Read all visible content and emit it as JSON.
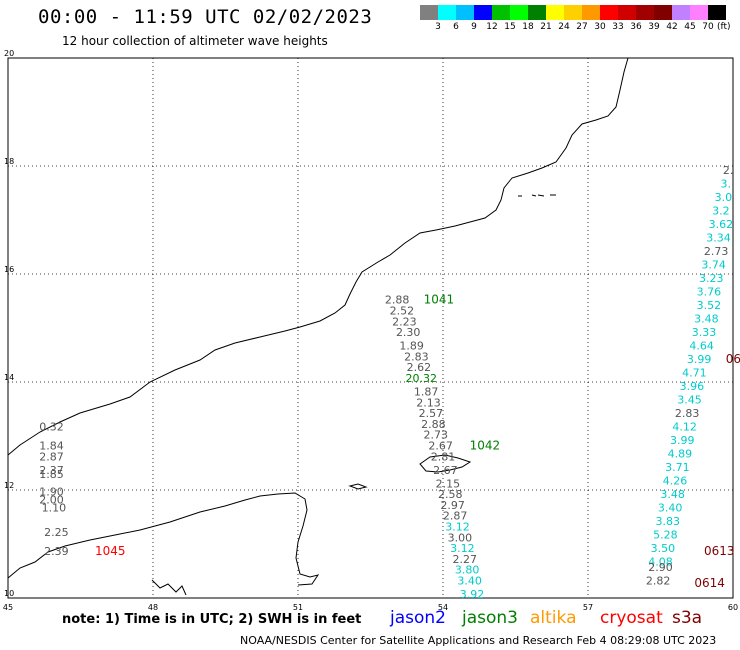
{
  "title": "00:00 - 11:59 UTC 02/02/2023",
  "subtitle": "12 hour collection of altimeter wave heights",
  "colorbar": {
    "unit": "(ft)",
    "colors": [
      "#808080",
      "#00ffff",
      "#00bfff",
      "#0000ff",
      "#00c000",
      "#00ff00",
      "#008000",
      "#ffff00",
      "#ffd000",
      "#ff9900",
      "#ff0000",
      "#d00000",
      "#a00000",
      "#800000",
      "#c080ff",
      "#ff80ff",
      "#000000"
    ],
    "ticks": [
      "3",
      "6",
      "9",
      "12",
      "15",
      "18",
      "21",
      "24",
      "27",
      "30",
      "33",
      "36",
      "39",
      "42",
      "45",
      "70"
    ]
  },
  "axes": {
    "lon_ticks": [
      "45",
      "48",
      "51",
      "54",
      "57",
      "60"
    ],
    "lat_ticks": [
      "10",
      "12",
      "14",
      "16",
      "18",
      "20"
    ]
  },
  "note": "note: 1) Time is in UTC; 2) SWH is in feet",
  "legend": [
    {
      "name": "jason2",
      "color": "#0000ff"
    },
    {
      "name": "jason3",
      "color": "#008000"
    },
    {
      "name": "altika",
      "color": "#ff9900"
    },
    {
      "name": "cryosat",
      "color": "#ff0000"
    },
    {
      "name": "s3a",
      "color": "#800000"
    }
  ],
  "footer": "NOAA/NESDIS Center for Satellite Applications and Research   Feb  4 08:29:08 UTC 2023",
  "tracks": [
    {
      "id": "1041",
      "color": "#008000",
      "label_at": [
        53.6,
        15.45
      ],
      "points": [
        {
          "lon": 53.05,
          "lat": 15.45,
          "v": "2.88"
        },
        {
          "lon": 53.15,
          "lat": 15.25,
          "v": "2.52"
        },
        {
          "lon": 53.2,
          "lat": 15.05,
          "v": "2.23"
        },
        {
          "lon": 53.28,
          "lat": 14.85,
          "v": "2.30"
        },
        {
          "lon": 53.35,
          "lat": 14.6,
          "v": "1.89"
        },
        {
          "lon": 53.45,
          "lat": 14.4,
          "v": "2.83"
        },
        {
          "lon": 53.5,
          "lat": 14.2,
          "v": "2.62"
        },
        {
          "lon": 53.55,
          "lat": 14.0,
          "v": "20.32",
          "c": "#008000"
        },
        {
          "lon": 53.65,
          "lat": 13.75,
          "v": "1.87"
        },
        {
          "lon": 53.7,
          "lat": 13.55,
          "v": "2.13"
        },
        {
          "lon": 53.75,
          "lat": 13.35,
          "v": "2.57"
        },
        {
          "lon": 53.8,
          "lat": 13.15,
          "v": "2.88"
        },
        {
          "lon": 53.85,
          "lat": 12.95,
          "v": "2.73"
        },
        {
          "lon": 53.95,
          "lat": 12.75,
          "v": "2.67"
        },
        {
          "lon": 54.0,
          "lat": 12.55,
          "v": "2.81"
        }
      ]
    },
    {
      "id": "1042",
      "color": "#008000",
      "label_at": [
        54.55,
        12.75
      ],
      "points": [
        {
          "lon": 54.05,
          "lat": 12.3,
          "v": "2.67"
        },
        {
          "lon": 54.1,
          "lat": 12.05,
          "v": "2.15"
        },
        {
          "lon": 54.15,
          "lat": 11.85,
          "v": "2.58"
        },
        {
          "lon": 54.2,
          "lat": 11.65,
          "v": "2.97"
        },
        {
          "lon": 54.25,
          "lat": 11.45,
          "v": "2.87"
        },
        {
          "lon": 54.3,
          "lat": 11.25,
          "v": "3.12",
          "c": "#00cccc"
        },
        {
          "lon": 54.35,
          "lat": 11.05,
          "v": "3.00"
        },
        {
          "lon": 54.4,
          "lat": 10.85,
          "v": "3.12",
          "c": "#00cccc"
        },
        {
          "lon": 54.45,
          "lat": 10.65,
          "v": "2.27"
        },
        {
          "lon": 54.5,
          "lat": 10.45,
          "v": "3.80",
          "c": "#00cccc"
        },
        {
          "lon": 54.55,
          "lat": 10.25,
          "v": "3.40",
          "c": "#00cccc"
        },
        {
          "lon": 54.6,
          "lat": 10.0,
          "v": "3.92",
          "c": "#00cccc"
        }
      ]
    },
    {
      "id": "1045",
      "color": "#ff0000",
      "label_at": [
        46.8,
        10.8
      ],
      "points": [
        {
          "lon": 45.9,
          "lat": 13.1,
          "v": "0.32"
        },
        {
          "lon": 45.9,
          "lat": 12.75,
          "v": "1.84"
        },
        {
          "lon": 45.9,
          "lat": 12.55,
          "v": "2.87"
        },
        {
          "lon": 45.9,
          "lat": 12.3,
          "v": "2.37"
        },
        {
          "lon": 45.9,
          "lat": 12.22,
          "v": "1.85"
        },
        {
          "lon": 45.9,
          "lat": 11.9,
          "v": "1.90"
        },
        {
          "lon": 45.9,
          "lat": 11.75,
          "v": "2.00"
        },
        {
          "lon": 45.95,
          "lat": 11.6,
          "v": "1.10"
        },
        {
          "lon": 46.0,
          "lat": 11.15,
          "v": "2.25"
        },
        {
          "lon": 46.0,
          "lat": 10.8,
          "v": "2.39"
        }
      ]
    },
    {
      "id": "0613",
      "color": "#800000",
      "label_at": [
        59.4,
        10.8
      ],
      "points": [
        {
          "lon": 59.9,
          "lat": 17.85,
          "v": "2."
        },
        {
          "lon": 59.85,
          "lat": 17.6,
          "v": "3.",
          "c": "#00cccc"
        },
        {
          "lon": 59.8,
          "lat": 17.35,
          "v": "3.0",
          "c": "#00cccc"
        },
        {
          "lon": 59.75,
          "lat": 17.1,
          "v": "3.2",
          "c": "#00cccc"
        },
        {
          "lon": 59.75,
          "lat": 16.85,
          "v": "3.62",
          "c": "#00cccc"
        },
        {
          "lon": 59.7,
          "lat": 16.6,
          "v": "3.34",
          "c": "#00cccc"
        },
        {
          "lon": 59.65,
          "lat": 16.35,
          "v": "2.73"
        },
        {
          "lon": 59.6,
          "lat": 16.1,
          "v": "3.74",
          "c": "#00cccc"
        },
        {
          "lon": 59.55,
          "lat": 15.85,
          "v": "3.23",
          "c": "#00cccc"
        },
        {
          "lon": 59.5,
          "lat": 15.6,
          "v": "3.76",
          "c": "#00cccc"
        },
        {
          "lon": 59.5,
          "lat": 15.35,
          "v": "3.52",
          "c": "#00cccc"
        },
        {
          "lon": 59.45,
          "lat": 15.1,
          "v": "3.48",
          "c": "#00cccc"
        },
        {
          "lon": 59.4,
          "lat": 14.85,
          "v": "3.33",
          "c": "#00cccc"
        },
        {
          "lon": 59.35,
          "lat": 14.6,
          "v": "4.64",
          "c": "#00cccc"
        },
        {
          "lon": 59.3,
          "lat": 14.35,
          "v": "3.99",
          "c": "#00cccc"
        },
        {
          "lon": 59.2,
          "lat": 14.1,
          "v": "4.71",
          "c": "#00cccc"
        },
        {
          "lon": 59.15,
          "lat": 13.85,
          "v": "3.96",
          "c": "#00cccc"
        },
        {
          "lon": 59.1,
          "lat": 13.6,
          "v": "3.45",
          "c": "#00cccc"
        },
        {
          "lon": 59.05,
          "lat": 13.35,
          "v": "2.83"
        },
        {
          "lon": 59.0,
          "lat": 13.1,
          "v": "4.12",
          "c": "#00cccc"
        },
        {
          "lon": 58.95,
          "lat": 12.85,
          "v": "3.99",
          "c": "#00cccc"
        },
        {
          "lon": 58.9,
          "lat": 12.6,
          "v": "4.89",
          "c": "#00cccc"
        },
        {
          "lon": 58.85,
          "lat": 12.35,
          "v": "3.71",
          "c": "#00cccc"
        },
        {
          "lon": 58.8,
          "lat": 12.1,
          "v": "4.26",
          "c": "#00cccc"
        },
        {
          "lon": 58.75,
          "lat": 11.85,
          "v": "3.48",
          "c": "#00cccc"
        },
        {
          "lon": 58.7,
          "lat": 11.6,
          "v": "3.40",
          "c": "#00cccc"
        },
        {
          "lon": 58.65,
          "lat": 11.35,
          "v": "3.83",
          "c": "#00cccc"
        },
        {
          "lon": 58.6,
          "lat": 11.1,
          "v": "5.28",
          "c": "#00cccc"
        },
        {
          "lon": 58.55,
          "lat": 10.85,
          "v": "3.50",
          "c": "#00cccc"
        },
        {
          "lon": 58.5,
          "lat": 10.6,
          "v": "4.08",
          "c": "#00cccc"
        }
      ]
    },
    {
      "id": "0614",
      "color": "#800000",
      "label_at": [
        59.2,
        10.2
      ],
      "points": [
        {
          "lon": 58.5,
          "lat": 10.5,
          "v": "2.90"
        },
        {
          "lon": 58.45,
          "lat": 10.25,
          "v": "2.82"
        }
      ]
    },
    {
      "id": "06",
      "color": "#800000",
      "label_at": [
        59.85,
        14.35
      ],
      "points": []
    }
  ]
}
